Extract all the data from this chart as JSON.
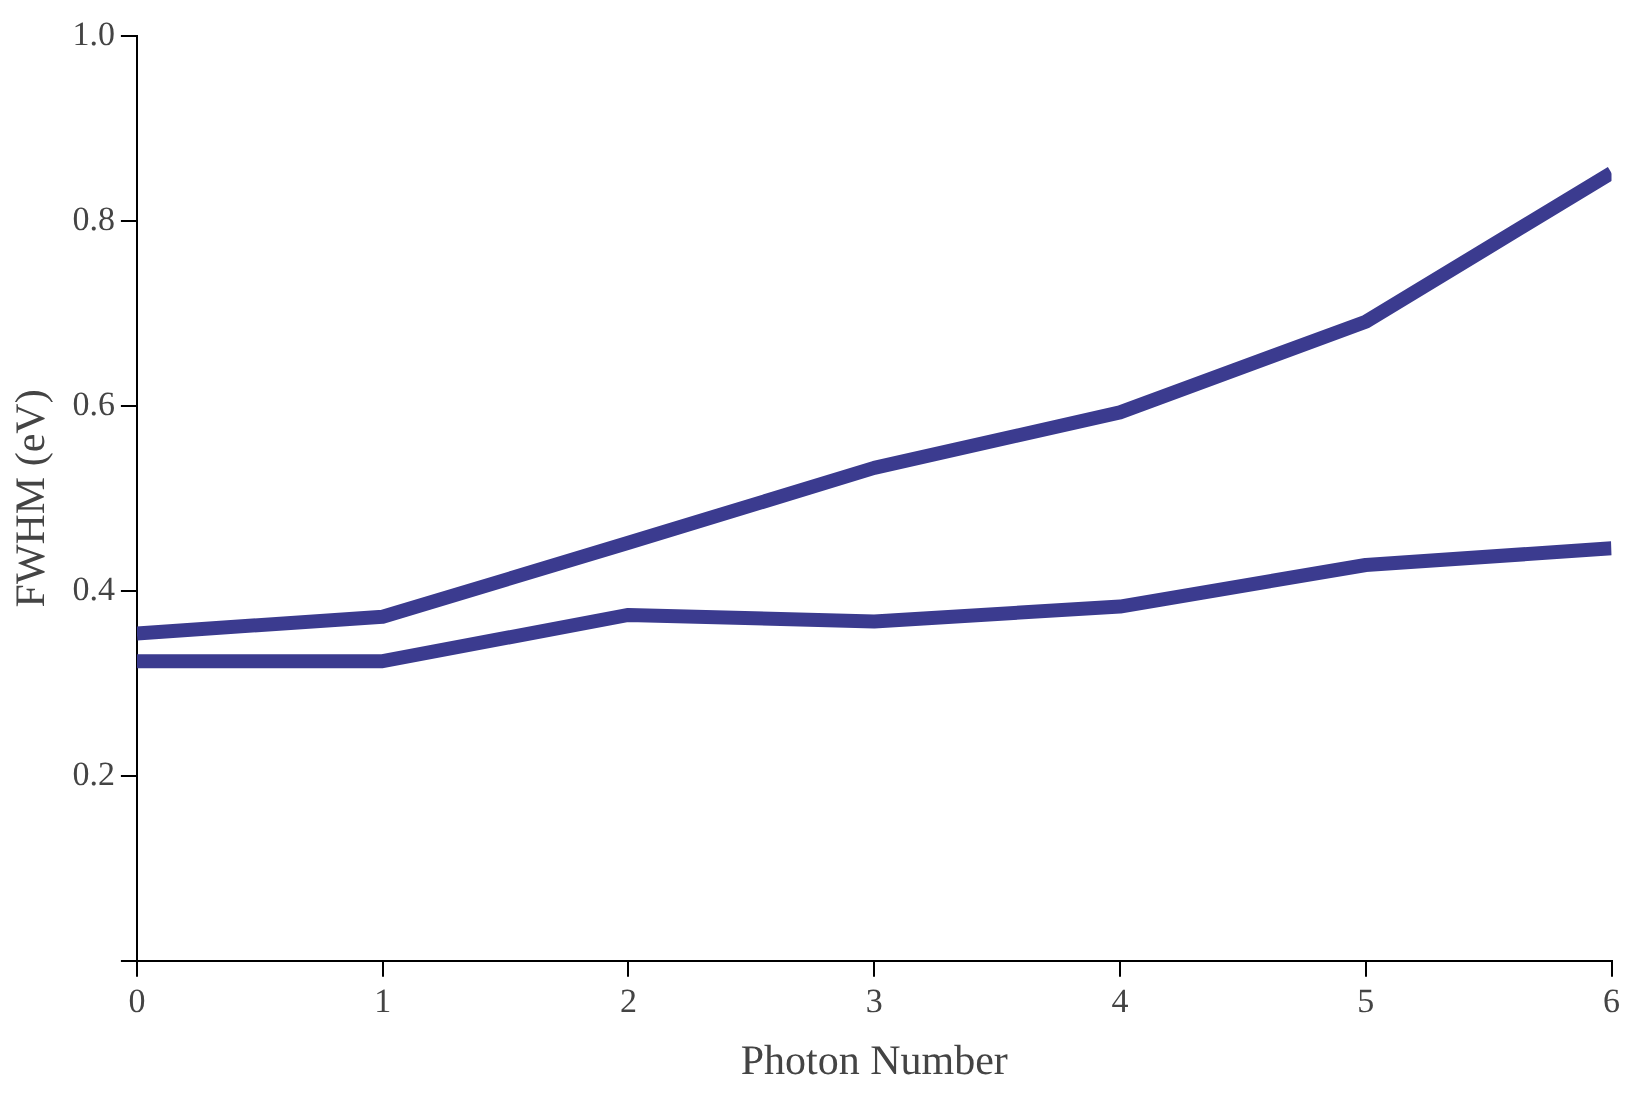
{
  "chart_data": {
    "type": "line",
    "xlabel": "Photon Number",
    "ylabel": "FWHM (eV)",
    "x": [
      0,
      1,
      2,
      3,
      4,
      5,
      6
    ],
    "series": [
      {
        "color": "#3b3b8f",
        "values": [
          0.354,
          0.372,
          0.452,
          0.533,
          0.593,
          0.691,
          0.852
        ]
      },
      {
        "color": "#3b3b8f",
        "values": [
          0.324,
          0.324,
          0.374,
          0.367,
          0.383,
          0.428,
          0.446
        ]
      }
    ],
    "xlim": [
      0,
      6
    ],
    "xticks": [
      0,
      1,
      2,
      3,
      4,
      5,
      6
    ],
    "ylim": [
      0,
      1
    ],
    "yticks": [
      {
        "value": 0,
        "label": null
      },
      0.2,
      0.4,
      0.6,
      0.8,
      {
        "value": 1,
        "label": "1.0"
      }
    ],
    "grid": false,
    "legend": false,
    "marker": "none",
    "line_style": "solid"
  }
}
